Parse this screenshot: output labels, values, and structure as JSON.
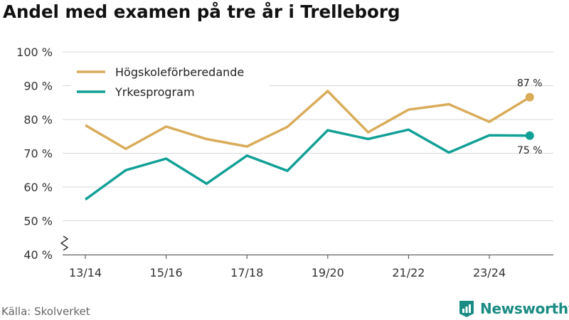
{
  "title": "Andel med examen på tre år i Trelleborg",
  "source": "Källa: Skolverket",
  "brand": {
    "name": "Newsworthy",
    "icon": "newsworthy-logo-icon",
    "color": "#1a8c83"
  },
  "chart_data": {
    "type": "line",
    "title": "Andel med examen på tre år i Trelleborg",
    "xlabel": "",
    "ylabel": "",
    "x": [
      "13/14",
      "14/15",
      "15/16",
      "16/17",
      "17/18",
      "18/19",
      "19/20",
      "20/21",
      "21/22",
      "22/23",
      "23/24",
      "24/25"
    ],
    "x_tick_labels": [
      "13/14",
      "15/16",
      "17/18",
      "19/20",
      "21/22",
      "23/24"
    ],
    "ylim": [
      40,
      100
    ],
    "y_ticks": [
      40,
      50,
      60,
      70,
      80,
      90,
      100
    ],
    "y_tick_labels": [
      "40 %",
      "50 %",
      "60 %",
      "70 %",
      "80 %",
      "90 %",
      "100 %"
    ],
    "y_axis_break": true,
    "grid": "horizontal",
    "legend_position": "top-left",
    "series": [
      {
        "name": "Högskoleförberedande",
        "color": "#d9ac5a",
        "values": [
          78.3,
          71.3,
          77.9,
          74.2,
          72.0,
          77.8,
          88.4,
          76.2,
          82.9,
          84.5,
          79.3,
          86.6
        ],
        "end_label": "87 %"
      },
      {
        "name": "Yrkesprogram",
        "color": "#11a096",
        "values": [
          56.3,
          65.0,
          68.4,
          61.0,
          69.3,
          64.8,
          76.8,
          74.2,
          77.0,
          70.2,
          75.3,
          75.2
        ],
        "end_label": "75 %"
      }
    ]
  }
}
